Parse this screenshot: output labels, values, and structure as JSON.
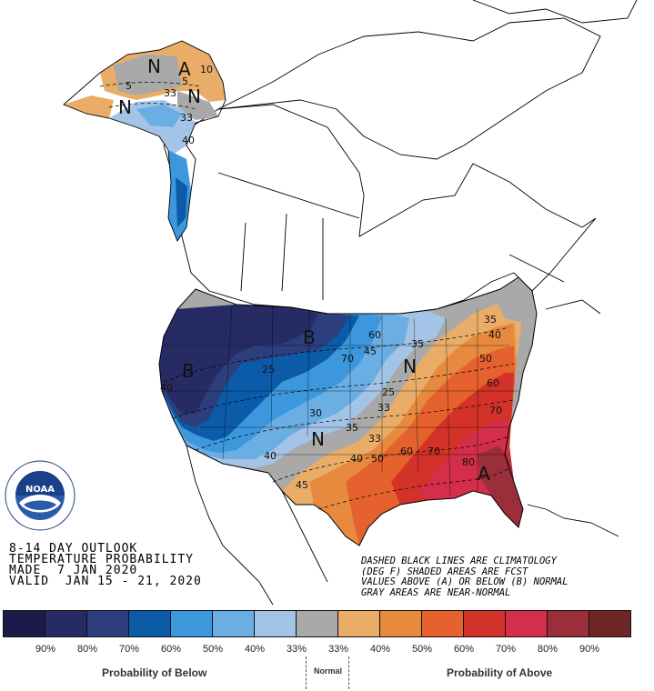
{
  "map": {
    "letters": [
      {
        "id": "ak-n1",
        "text": "N"
      },
      {
        "id": "ak-a",
        "text": "A"
      },
      {
        "id": "ak-n2",
        "text": "N"
      },
      {
        "id": "ak-n3",
        "text": "N"
      },
      {
        "id": "b-north",
        "text": "B"
      },
      {
        "id": "b-west",
        "text": "B"
      },
      {
        "id": "n-mid",
        "text": "N"
      },
      {
        "id": "n-south",
        "text": "N"
      },
      {
        "id": "a-se",
        "text": "A"
      }
    ],
    "contour_labels": [
      {
        "id": "ak-33a",
        "text": "33"
      },
      {
        "id": "ak-33b",
        "text": "33"
      },
      {
        "id": "ak-10",
        "text": "10"
      },
      {
        "id": "ak-5",
        "text": "5"
      },
      {
        "id": "ak-5b",
        "text": "5"
      },
      {
        "id": "ak-40",
        "text": "40"
      },
      {
        "id": "w-40",
        "text": "40"
      },
      {
        "id": "m-25",
        "text": "25"
      },
      {
        "id": "m-70",
        "text": "70"
      },
      {
        "id": "m-60",
        "text": "60"
      },
      {
        "id": "m-45",
        "text": "45"
      },
      {
        "id": "m-25b",
        "text": "25"
      },
      {
        "id": "m-33",
        "text": "33"
      },
      {
        "id": "m-30",
        "text": "30"
      },
      {
        "id": "m-35",
        "text": "35"
      },
      {
        "id": "m-40",
        "text": "40"
      },
      {
        "id": "ne-35",
        "text": "35"
      },
      {
        "id": "ne-40",
        "text": "40"
      },
      {
        "id": "ne-50",
        "text": "50"
      },
      {
        "id": "ne-60",
        "text": "60"
      },
      {
        "id": "ne-70",
        "text": "70"
      },
      {
        "id": "s-33",
        "text": "33"
      },
      {
        "id": "s-40",
        "text": "40"
      },
      {
        "id": "s-50",
        "text": "50"
      },
      {
        "id": "s-60",
        "text": "60"
      },
      {
        "id": "s-70",
        "text": "70"
      },
      {
        "id": "s-80",
        "text": "80"
      },
      {
        "id": "s-45",
        "text": "45"
      },
      {
        "id": "s-35",
        "text": "35"
      }
    ]
  },
  "info": {
    "line1": "8-14 DAY OUTLOOK",
    "line2": "TEMPERATURE PROBABILITY",
    "line3": "MADE  7 JAN 2020",
    "line4": "VALID  JAN 15 - 21, 2020"
  },
  "notes": {
    "line1": "DASHED BLACK LINES ARE CLIMATOLOGY",
    "line2": "(DEG F) SHADED AREAS ARE FCST",
    "line3": "VALUES ABOVE (A) OR BELOW (B) NORMAL",
    "line4": "GRAY AREAS ARE NEAR-NORMAL"
  },
  "logo": {
    "text": "NOAA"
  },
  "legend": {
    "colors": [
      "#1c1a4b",
      "#272b64",
      "#2c3e7c",
      "#0b5ba8",
      "#3c97dc",
      "#6aaee3",
      "#a3c4e6",
      "#a9a9a9",
      "#e9ad68",
      "#e78a3e",
      "#e5612e",
      "#d23227",
      "#d32e4a",
      "#9a2e3a",
      "#6d2625"
    ],
    "labels": [
      "90%",
      "80%",
      "70%",
      "60%",
      "50%",
      "40%",
      "33%",
      "33%",
      "40%",
      "50%",
      "60%",
      "70%",
      "80%",
      "90%"
    ],
    "below_caption": "Probability of Below",
    "normal_caption": "Normal",
    "above_caption": "Probability of Above"
  }
}
